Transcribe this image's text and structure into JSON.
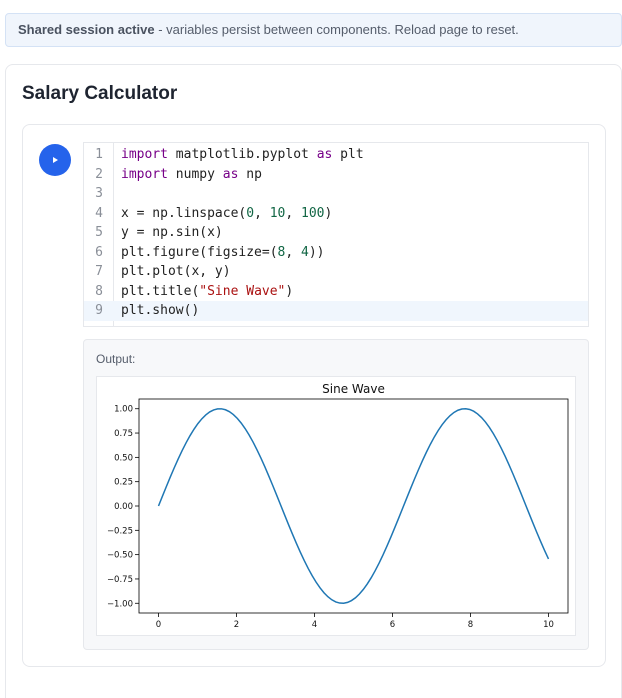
{
  "banner": {
    "strong": "Shared session active",
    "rest": " - variables persist between components. Reload page to reset."
  },
  "page": {
    "title": "Salary Calculator"
  },
  "run_button": {
    "icon": "play-icon"
  },
  "code": {
    "lines": [
      {
        "n": "1",
        "text": "import matplotlib.pyplot as plt"
      },
      {
        "n": "2",
        "text": "import numpy as np"
      },
      {
        "n": "3",
        "text": ""
      },
      {
        "n": "4",
        "text": "x = np.linspace(0, 10, 100)"
      },
      {
        "n": "5",
        "text": "y = np.sin(x)"
      },
      {
        "n": "6",
        "text": "plt.figure(figsize=(8, 4))"
      },
      {
        "n": "7",
        "text": "plt.plot(x, y)"
      },
      {
        "n": "8",
        "text": "plt.title(\"Sine Wave\")"
      },
      {
        "n": "9",
        "text": "plt.show()"
      }
    ],
    "active_line": 9
  },
  "output": {
    "label": "Output:"
  },
  "chart_data": {
    "type": "line",
    "title": "Sine Wave",
    "xlabel": "",
    "ylabel": "",
    "xlim": [
      -0.5,
      10.5
    ],
    "ylim": [
      -1.1,
      1.1
    ],
    "xticks": [
      0,
      2,
      4,
      6,
      8,
      10
    ],
    "xtick_labels": [
      "0",
      "2",
      "4",
      "6",
      "8",
      "10"
    ],
    "yticks": [
      1.0,
      0.75,
      0.5,
      0.25,
      0.0,
      -0.25,
      -0.5,
      -0.75,
      -1.0
    ],
    "ytick_labels": [
      "1.00",
      "0.75",
      "0.50",
      "0.25",
      "0.00",
      "−0.25",
      "−0.50",
      "−0.75",
      "−1.00"
    ],
    "series": [
      {
        "function": "sin",
        "x_start": 0,
        "x_end": 10,
        "points": 100,
        "color": "#1f77b4"
      }
    ],
    "grid": false,
    "legend": "none"
  }
}
